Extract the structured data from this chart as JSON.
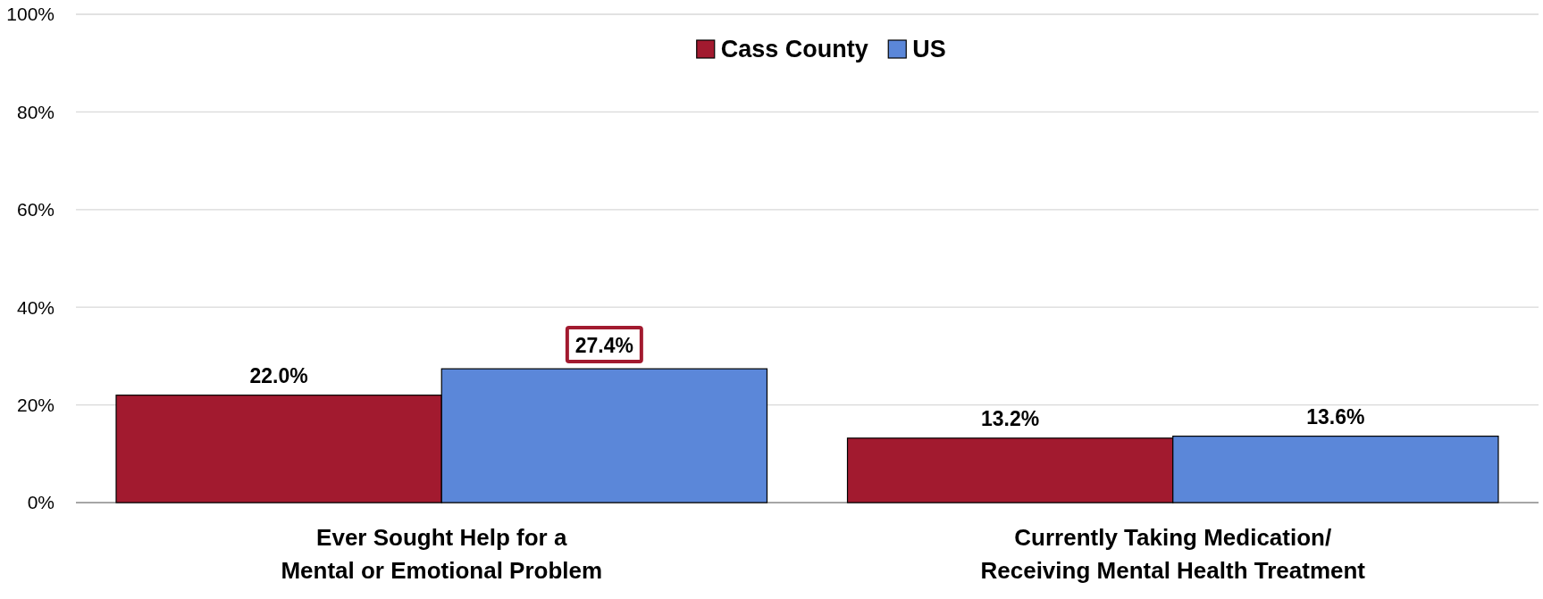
{
  "chart_data": {
    "type": "bar",
    "categories": [
      "Ever Sought Help for a\nMental or Emotional Problem",
      "Currently Taking Medication/\nReceiving Mental Health Treatment"
    ],
    "series": [
      {
        "name": "Cass County",
        "color": "#a21a2f",
        "values": [
          22.0,
          13.2
        ],
        "value_labels": [
          "22.0%",
          "13.2%"
        ]
      },
      {
        "name": "US",
        "color": "#5b87d9",
        "values": [
          27.4,
          13.6
        ],
        "value_labels": [
          null,
          "13.6%"
        ]
      }
    ],
    "annotations": [
      "27.4%"
    ],
    "ylim": [
      0,
      100
    ],
    "yticks": [
      {
        "value": 0,
        "label": "0%"
      },
      {
        "value": 20,
        "label": "20%"
      },
      {
        "value": 40,
        "label": "40%"
      },
      {
        "value": 60,
        "label": "60%"
      },
      {
        "value": 80,
        "label": "80%"
      },
      {
        "value": 100,
        "label": "100%"
      }
    ],
    "grid": "y",
    "legend": "top"
  }
}
